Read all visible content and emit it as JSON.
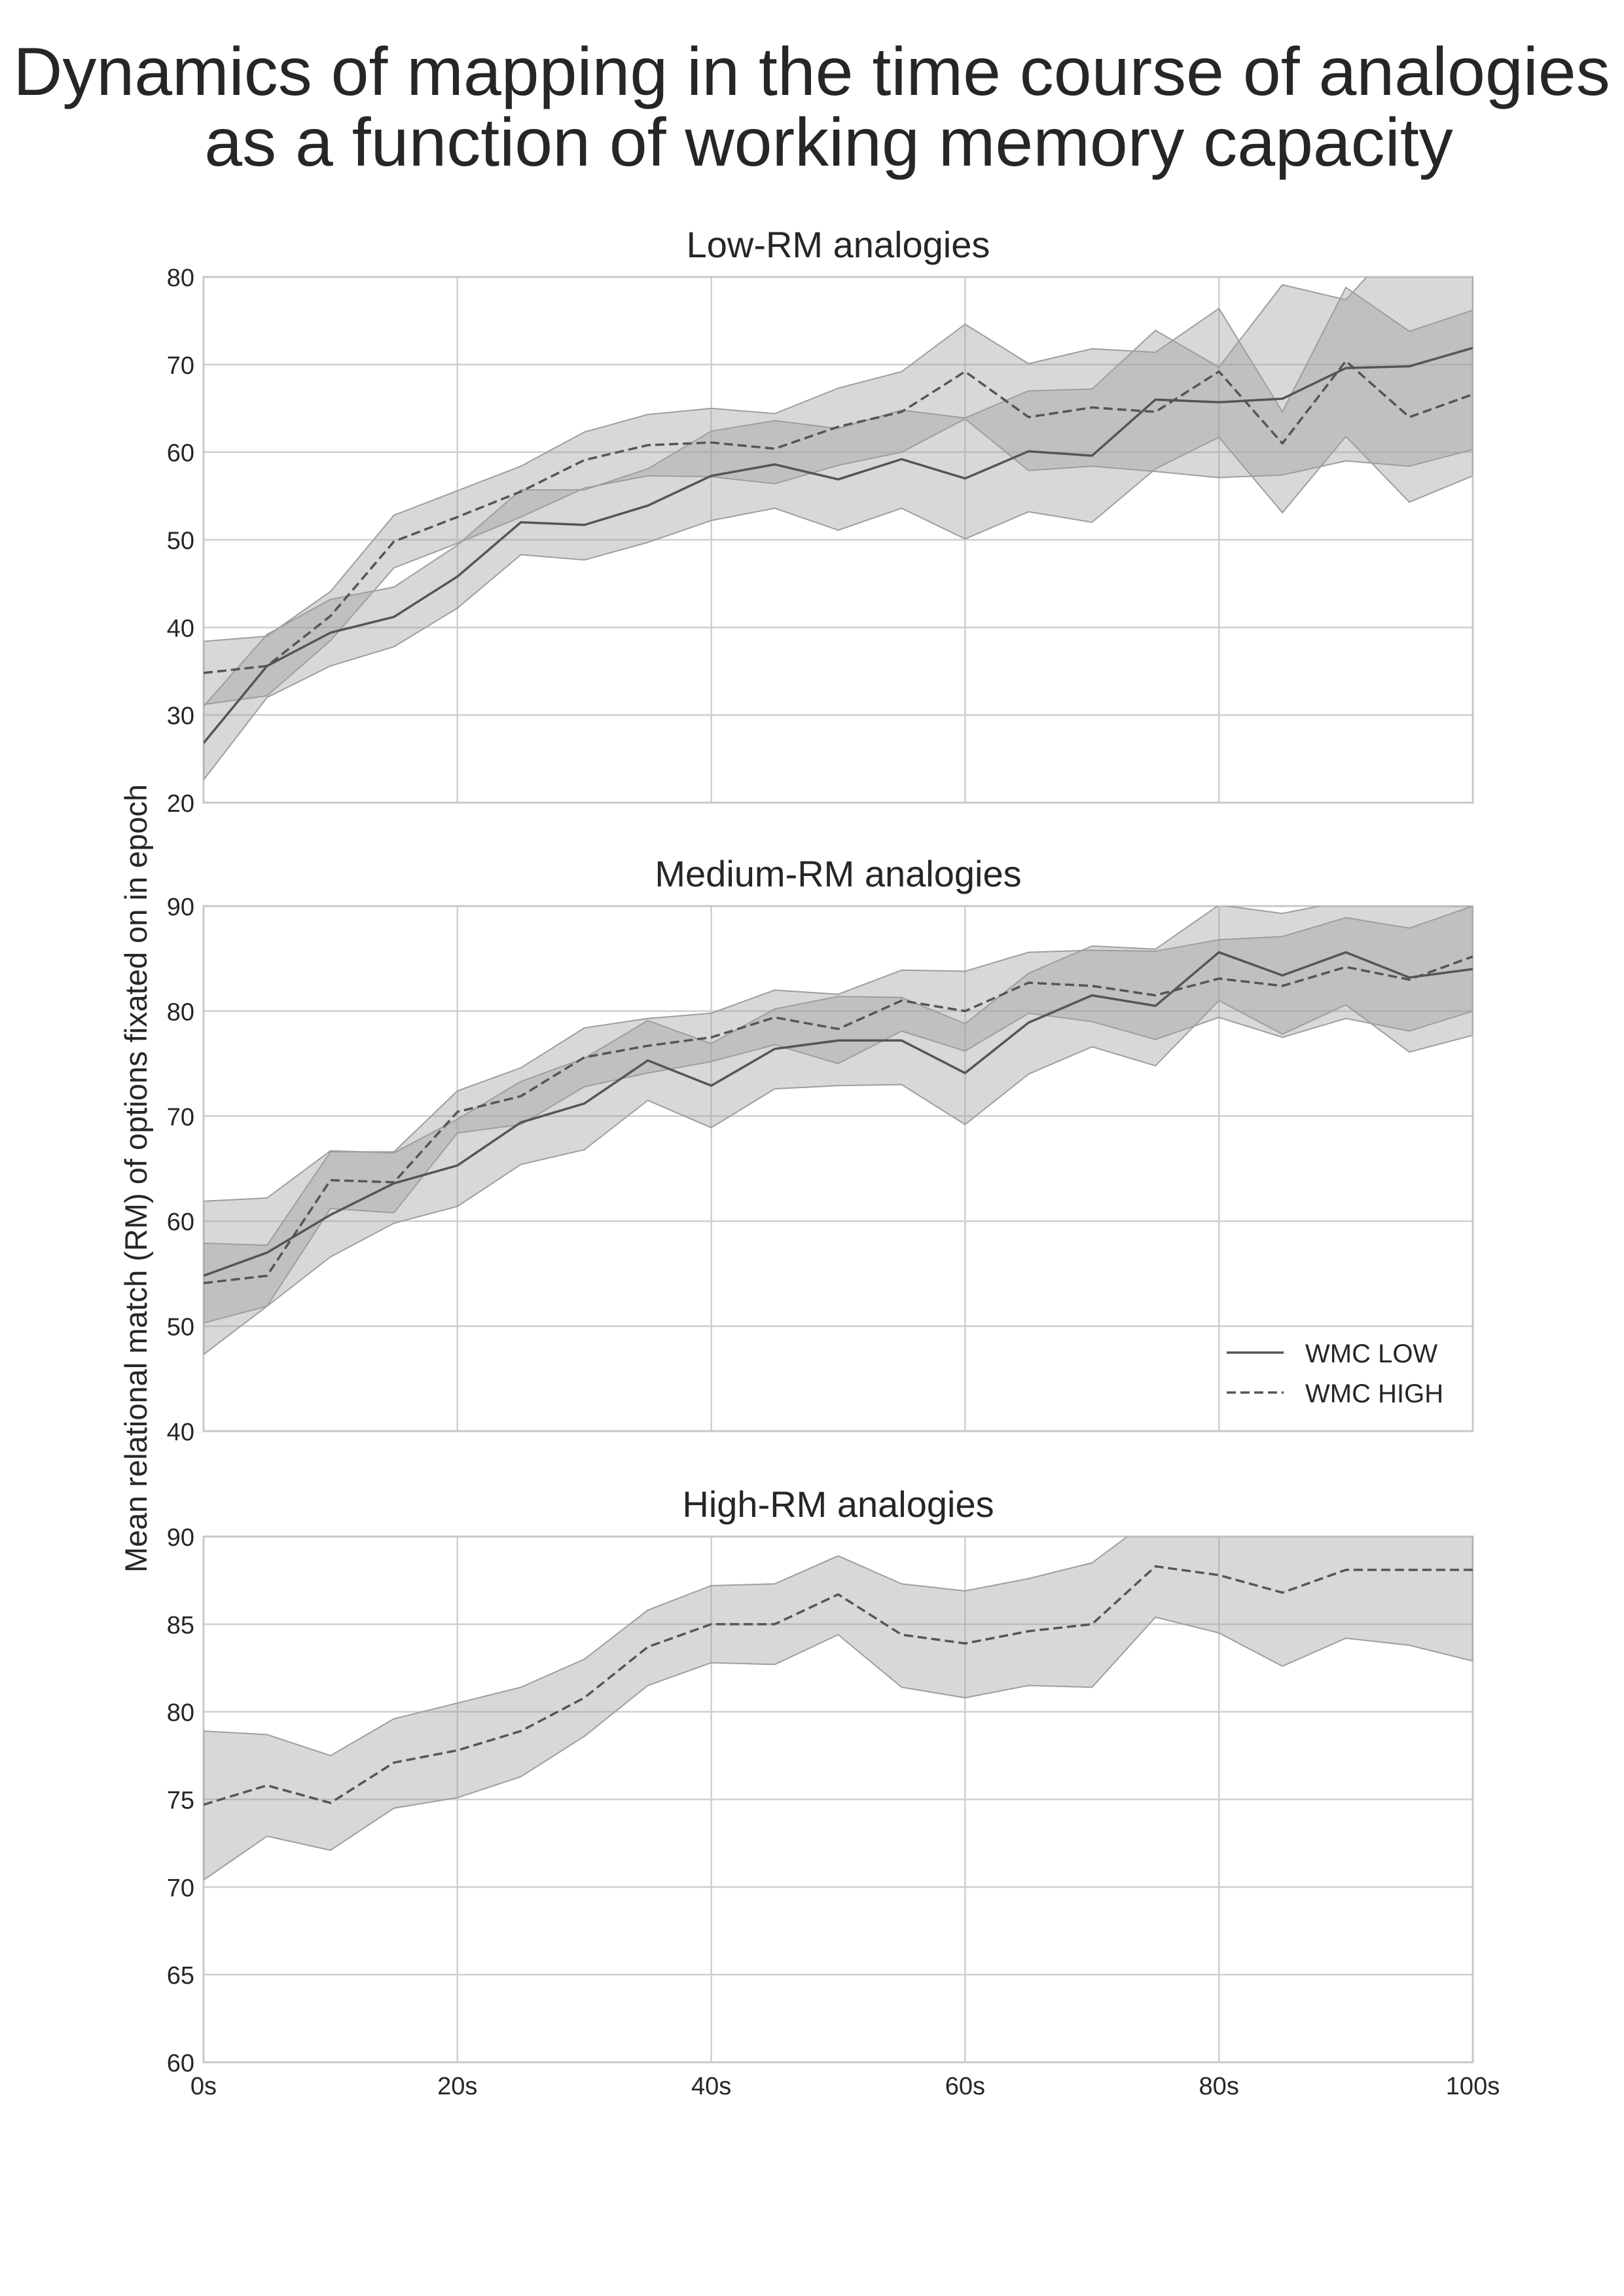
{
  "figure": {
    "title_line1": "Dynamics of mapping in the time course of analogies",
    "title_line2": "as a function of working memory capacity",
    "ylabel": "Mean relational match (RM) of options fixated on in epoch"
  },
  "legend": {
    "placement": "lower-right of middle panel",
    "entries": [
      {
        "label": "WMC LOW",
        "style": "solid"
      },
      {
        "label": "WMC HIGH",
        "style": "dashed"
      }
    ]
  },
  "colors": {
    "line": "#555555",
    "band": "#9e9e9e",
    "grid": "#cfcfcf",
    "frame": "#c8c8c8"
  },
  "chart_data": [
    {
      "type": "line",
      "title": "Low-RM analogies",
      "xlabel": "",
      "ylabel": "Mean relational match (RM) of options fixated on in epoch",
      "xlim": [
        0,
        100
      ],
      "ylim": [
        20,
        80
      ],
      "yticks": [
        20,
        30,
        40,
        50,
        60,
        70,
        80
      ],
      "xticks": [
        0,
        20,
        40,
        60,
        80,
        100
      ],
      "grid": true,
      "x": [
        0,
        5,
        10,
        15,
        20,
        25,
        30,
        35,
        40,
        45,
        50,
        55,
        60,
        65,
        70,
        75,
        80,
        85,
        90,
        95,
        100
      ],
      "series": [
        {
          "name": "WMC LOW",
          "style": "solid",
          "values": [
            26.8,
            35.6,
            39.4,
            41.2,
            45.8,
            52.0,
            51.7,
            53.9,
            57.3,
            58.6,
            56.9,
            59.2,
            57.0,
            60.1,
            59.6,
            66.0,
            65.7,
            66.1,
            69.6,
            69.8,
            71.9
          ],
          "lower": [
            22.6,
            32.0,
            35.6,
            37.8,
            42.2,
            48.3,
            47.7,
            49.7,
            52.2,
            53.6,
            51.1,
            53.6,
            50.1,
            53.2,
            52.0,
            58.1,
            61.7,
            53.1,
            61.8,
            54.3,
            57.3
          ],
          "upper": [
            31.0,
            39.2,
            43.2,
            44.6,
            49.4,
            55.7,
            55.7,
            58.1,
            62.4,
            63.6,
            62.7,
            64.8,
            63.9,
            67.0,
            67.2,
            73.9,
            69.7,
            79.1,
            77.4,
            85.3,
            86.5
          ]
        },
        {
          "name": "WMC HIGH",
          "style": "dashed",
          "values": [
            34.8,
            35.6,
            41.3,
            49.8,
            52.6,
            55.5,
            59.1,
            60.8,
            61.1,
            60.4,
            62.9,
            64.6,
            69.2,
            64.0,
            65.1,
            64.6,
            69.2,
            61.0,
            70.4,
            64.0,
            66.6
          ],
          "lower": [
            31.2,
            32.2,
            38.5,
            46.8,
            49.6,
            52.6,
            55.9,
            57.3,
            57.2,
            56.4,
            58.5,
            60.0,
            63.8,
            57.9,
            58.4,
            57.8,
            57.1,
            57.4,
            59.0,
            58.4,
            60.3
          ],
          "upper": [
            38.4,
            39.0,
            44.1,
            52.8,
            55.6,
            58.4,
            62.3,
            64.3,
            65.0,
            64.4,
            67.3,
            69.2,
            74.6,
            70.1,
            71.8,
            71.4,
            76.4,
            64.6,
            78.8,
            73.8,
            76.2
          ]
        }
      ]
    },
    {
      "type": "line",
      "title": "Medium-RM analogies",
      "xlabel": "",
      "ylabel": "",
      "xlim": [
        0,
        100
      ],
      "ylim": [
        40,
        90
      ],
      "yticks": [
        40,
        50,
        60,
        70,
        80,
        90
      ],
      "xticks": [
        0,
        20,
        40,
        60,
        80,
        100
      ],
      "grid": true,
      "x": [
        0,
        5,
        10,
        15,
        20,
        25,
        30,
        35,
        40,
        45,
        50,
        55,
        60,
        65,
        70,
        75,
        80,
        85,
        90,
        95,
        100
      ],
      "series": [
        {
          "name": "WMC LOW",
          "style": "solid",
          "values": [
            54.8,
            57.0,
            60.6,
            63.6,
            65.3,
            69.4,
            71.2,
            75.3,
            72.9,
            76.4,
            77.2,
            77.2,
            74.1,
            78.9,
            81.5,
            80.5,
            85.6,
            83.4,
            85.6,
            83.2,
            84.0
          ],
          "lower": [
            47.3,
            51.9,
            56.6,
            59.8,
            61.4,
            65.4,
            66.8,
            71.5,
            68.9,
            72.6,
            72.9,
            73.0,
            69.2,
            74.0,
            76.6,
            74.8,
            81.0,
            77.8,
            80.6,
            76.1,
            77.7
          ],
          "upper": [
            61.9,
            62.2,
            66.7,
            66.5,
            69.7,
            73.3,
            75.5,
            79.1,
            76.9,
            80.2,
            81.4,
            81.3,
            78.8,
            83.6,
            86.2,
            85.9,
            90.1,
            89.3,
            90.5,
            90.1,
            90.0
          ]
        },
        {
          "name": "WMC HIGH",
          "style": "dashed",
          "values": [
            54.1,
            54.8,
            63.9,
            63.7,
            70.4,
            71.9,
            75.6,
            76.7,
            77.5,
            79.4,
            78.3,
            81.0,
            80.0,
            82.7,
            82.4,
            81.5,
            83.1,
            82.4,
            84.2,
            83.0,
            85.2
          ],
          "lower": [
            50.3,
            51.9,
            61.2,
            60.8,
            68.4,
            69.2,
            72.8,
            74.1,
            75.2,
            76.8,
            75.0,
            78.1,
            76.2,
            79.8,
            79.0,
            77.3,
            79.4,
            77.5,
            79.3,
            78.1,
            80.0
          ],
          "upper": [
            57.9,
            57.7,
            66.6,
            66.6,
            72.4,
            74.6,
            78.4,
            79.3,
            79.8,
            82.0,
            81.6,
            83.9,
            83.8,
            85.6,
            85.8,
            85.7,
            86.8,
            87.1,
            88.9,
            87.9,
            90.0
          ]
        }
      ]
    },
    {
      "type": "line",
      "title": "High-RM analogies",
      "xlabel": "",
      "ylabel": "",
      "xlim": [
        0,
        100
      ],
      "ylim": [
        60,
        90
      ],
      "yticks": [
        60,
        65,
        70,
        75,
        80,
        85,
        90
      ],
      "xticks": [
        0,
        20,
        40,
        60,
        80,
        100
      ],
      "xticklabels": [
        "0s",
        "20s",
        "40s",
        "60s",
        "80s",
        "100s"
      ],
      "grid": true,
      "x": [
        0,
        5,
        10,
        15,
        20,
        25,
        30,
        35,
        40,
        45,
        50,
        55,
        60,
        65,
        70,
        75,
        80,
        85,
        90,
        95,
        100
      ],
      "series": [
        {
          "name": "WMC HIGH",
          "style": "dashed",
          "values": [
            74.7,
            75.8,
            74.8,
            77.1,
            77.8,
            78.9,
            80.8,
            83.7,
            85.0,
            85.0,
            86.7,
            84.4,
            83.9,
            84.6,
            85.0,
            88.3,
            87.8,
            86.8,
            88.1,
            88.1,
            88.1
          ],
          "lower": [
            70.4,
            72.9,
            72.1,
            74.5,
            75.1,
            76.3,
            78.6,
            81.5,
            82.8,
            82.7,
            84.4,
            81.4,
            80.8,
            81.5,
            81.4,
            85.4,
            84.5,
            82.6,
            84.2,
            83.8,
            82.9
          ],
          "upper": [
            78.9,
            78.7,
            77.5,
            79.6,
            80.5,
            81.4,
            83.0,
            85.8,
            87.2,
            87.3,
            88.9,
            87.3,
            86.9,
            87.6,
            88.5,
            91.2,
            91.0,
            91.0,
            92.0,
            92.4,
            93.0
          ]
        }
      ]
    }
  ]
}
